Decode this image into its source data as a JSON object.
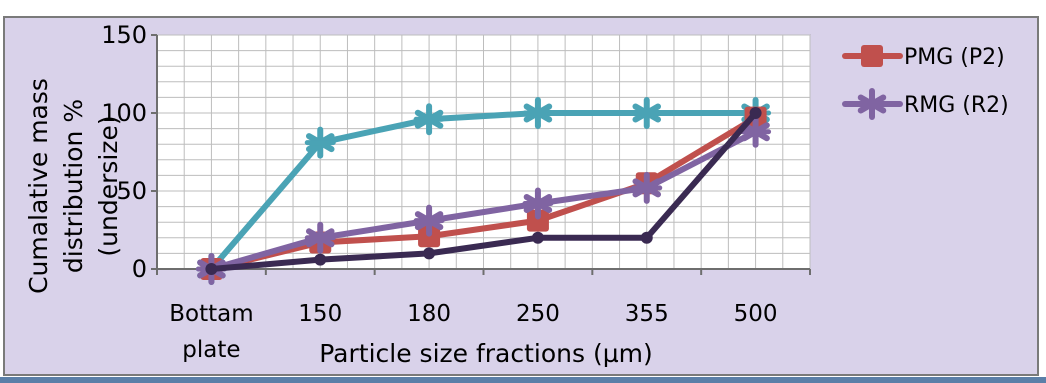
{
  "chart_data": {
    "type": "line",
    "categories": [
      "Bottam plate",
      "150",
      "180",
      "250",
      "355",
      "500"
    ],
    "category_lines": [
      [
        "Bottam",
        "plate"
      ],
      [
        "150"
      ],
      [
        "180"
      ],
      [
        "250"
      ],
      [
        "355"
      ],
      [
        "500"
      ]
    ],
    "xlabel": "Particle size fractions (µm)",
    "ylabel_lines": [
      "Cumalative mass",
      "distribution %",
      "(undersize)"
    ],
    "ylim": [
      0,
      150
    ],
    "yticks": [
      "0",
      "50",
      "100",
      "150"
    ],
    "grid": true,
    "legend_position": "right",
    "series": [
      {
        "name": "",
        "color": "#4aa3b5",
        "marker": "star",
        "values": [
          0,
          81,
          96,
          100,
          100,
          100
        ]
      },
      {
        "name": "PMG (P2)",
        "color": "#c0504d",
        "marker": "square",
        "values": [
          0,
          17,
          21,
          31,
          55,
          97
        ]
      },
      {
        "name": "RMG (R2)",
        "color": "#8064a2",
        "marker": "star",
        "values": [
          0,
          20,
          31,
          42,
          52,
          88
        ]
      },
      {
        "name": "",
        "color": "#3a2a52",
        "marker": "none",
        "values": [
          0,
          6,
          10,
          20,
          20,
          100
        ]
      }
    ]
  }
}
